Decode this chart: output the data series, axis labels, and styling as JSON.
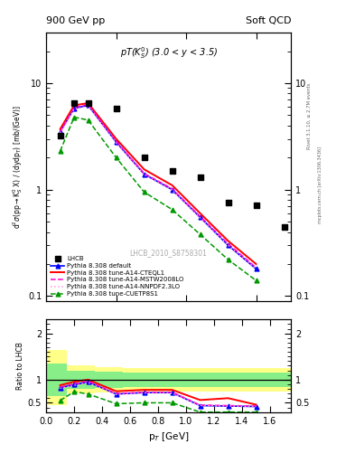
{
  "title_left": "900 GeV pp",
  "title_right": "Soft QCD",
  "annotation": "pT(K) (3.0 < y < 3.5)",
  "watermark": "LHCB_2010_S8758301",
  "right_label": "Rivet 3.1.10, ≥ 2.7M events",
  "right_label2": "mcplots.cern.ch [arXiv:1306.3436]",
  "ylabel_main": "d²σ(pp→K°S X) / (dydpT) [mb/(GeV)]",
  "ylabel_ratio": "Ratio to LHCB",
  "xlabel": "p_T [GeV]",
  "lhcb_x": [
    0.1,
    0.2,
    0.3,
    0.5,
    0.7,
    0.9,
    1.1,
    1.3,
    1.5,
    1.7
  ],
  "lhcb_y": [
    3.2,
    6.5,
    6.5,
    5.8,
    2.0,
    1.5,
    1.3,
    0.75,
    0.72,
    0.45
  ],
  "pythia_default_x": [
    0.1,
    0.2,
    0.3,
    0.5,
    0.7,
    0.9,
    1.1,
    1.3,
    1.5
  ],
  "pythia_default_y": [
    3.5,
    5.8,
    6.2,
    2.8,
    1.4,
    1.0,
    0.55,
    0.3,
    0.18
  ],
  "pythia_cteq_y": [
    3.7,
    6.2,
    6.5,
    3.0,
    1.55,
    1.1,
    0.6,
    0.33,
    0.2
  ],
  "pythia_mstw_y": [
    3.5,
    5.9,
    6.3,
    2.85,
    1.42,
    1.02,
    0.56,
    0.31,
    0.185
  ],
  "pythia_nnpdf_y": [
    3.4,
    5.7,
    6.1,
    2.75,
    1.38,
    0.99,
    0.54,
    0.3,
    0.18
  ],
  "pythia_cuet_y": [
    2.3,
    4.8,
    4.5,
    2.0,
    0.95,
    0.65,
    0.38,
    0.22,
    0.14
  ],
  "ratio_default_y": [
    0.83,
    0.89,
    0.95,
    0.69,
    0.72,
    0.72,
    0.44,
    0.43,
    0.42
  ],
  "ratio_cteq_y": [
    0.88,
    0.955,
    1.0,
    0.75,
    0.78,
    0.78,
    0.56,
    0.6,
    0.46
  ],
  "ratio_mstw_y": [
    0.84,
    0.91,
    0.97,
    0.7,
    0.73,
    0.73,
    0.45,
    0.44,
    0.43
  ],
  "ratio_nnpdf_y": [
    0.81,
    0.877,
    0.938,
    0.68,
    0.71,
    0.71,
    0.44,
    0.43,
    0.42
  ],
  "ratio_cuet_y": [
    0.55,
    0.74,
    0.69,
    0.48,
    0.5,
    0.5,
    0.3,
    0.3,
    0.3
  ],
  "band_x_edges": [
    0.0,
    0.15,
    0.35,
    0.55,
    0.75,
    0.95,
    1.15,
    1.35,
    1.55,
    1.75
  ],
  "band_yellow_lo": [
    0.45,
    0.7,
    0.72,
    0.75,
    0.75,
    0.75,
    0.75,
    0.75,
    0.75
  ],
  "band_yellow_hi": [
    1.65,
    1.3,
    1.28,
    1.25,
    1.25,
    1.25,
    1.25,
    1.25,
    1.25
  ],
  "band_green_lo": [
    0.65,
    0.8,
    0.82,
    0.85,
    0.85,
    0.85,
    0.85,
    0.85,
    0.85
  ],
  "band_green_hi": [
    1.35,
    1.2,
    1.18,
    1.15,
    1.15,
    1.15,
    1.15,
    1.15,
    1.15
  ],
  "color_default": "#0000ff",
  "color_cteq": "#ff0000",
  "color_mstw": "#ff00cc",
  "color_nnpdf": "#ff99dd",
  "color_cuet": "#009900",
  "ylim_main": [
    0.09,
    30
  ],
  "ylim_ratio": [
    0.3,
    2.3
  ],
  "xlim": [
    0.0,
    1.75
  ]
}
